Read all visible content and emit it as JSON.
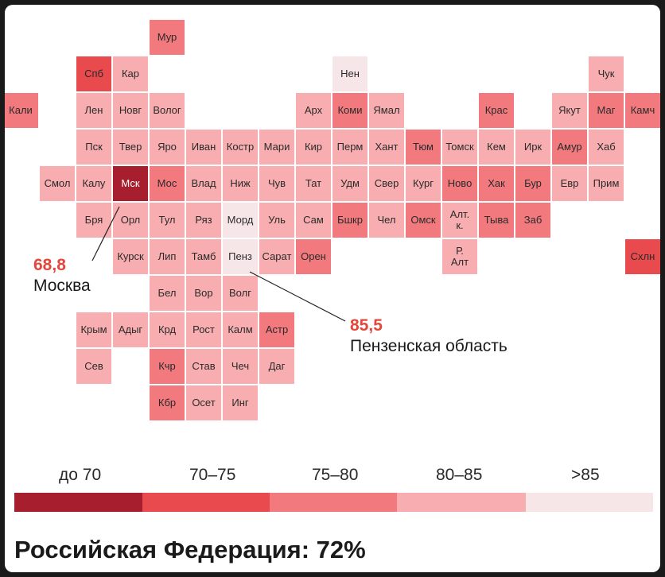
{
  "chart_data": {
    "type": "heatmap",
    "bins": [
      {
        "label": "до 70",
        "color": "#a71f2e"
      },
      {
        "label": "70–75",
        "color": "#e84a4e"
      },
      {
        "label": "75–80",
        "color": "#f27a7e"
      },
      {
        "label": "80–85",
        "color": "#f8aeb0"
      },
      {
        "label": ">85",
        "color": "#f6e6e8"
      }
    ],
    "regions": [
      {
        "name": "Мур",
        "col": 4,
        "row": 0,
        "bin": 2
      },
      {
        "name": "Спб",
        "col": 2,
        "row": 1,
        "bin": 1
      },
      {
        "name": "Кар",
        "col": 3,
        "row": 1,
        "bin": 3
      },
      {
        "name": "Нен",
        "col": 9,
        "row": 1,
        "bin": 4
      },
      {
        "name": "Чук",
        "col": 16,
        "row": 1,
        "bin": 3
      },
      {
        "name": "Кали",
        "col": 0,
        "row": 2,
        "bin": 2
      },
      {
        "name": "Лен",
        "col": 2,
        "row": 2,
        "bin": 3
      },
      {
        "name": "Новг",
        "col": 3,
        "row": 2,
        "bin": 3
      },
      {
        "name": "Волог",
        "col": 4,
        "row": 2,
        "bin": 3
      },
      {
        "name": "Арх",
        "col": 8,
        "row": 2,
        "bin": 3
      },
      {
        "name": "Коми",
        "col": 9,
        "row": 2,
        "bin": 2
      },
      {
        "name": "Ямал",
        "col": 10,
        "row": 2,
        "bin": 3
      },
      {
        "name": "Крас",
        "col": 13,
        "row": 2,
        "bin": 2
      },
      {
        "name": "Якут",
        "col": 15,
        "row": 2,
        "bin": 3
      },
      {
        "name": "Маг",
        "col": 16,
        "row": 2,
        "bin": 2
      },
      {
        "name": "Камч",
        "col": 17,
        "row": 2,
        "bin": 2
      },
      {
        "name": "Пск",
        "col": 2,
        "row": 3,
        "bin": 3
      },
      {
        "name": "Твер",
        "col": 3,
        "row": 3,
        "bin": 3
      },
      {
        "name": "Яро",
        "col": 4,
        "row": 3,
        "bin": 3
      },
      {
        "name": "Иван",
        "col": 5,
        "row": 3,
        "bin": 3
      },
      {
        "name": "Костр",
        "col": 6,
        "row": 3,
        "bin": 3
      },
      {
        "name": "Мари",
        "col": 7,
        "row": 3,
        "bin": 3
      },
      {
        "name": "Кир",
        "col": 8,
        "row": 3,
        "bin": 3
      },
      {
        "name": "Перм",
        "col": 9,
        "row": 3,
        "bin": 3
      },
      {
        "name": "Хант",
        "col": 10,
        "row": 3,
        "bin": 3
      },
      {
        "name": "Тюм",
        "col": 11,
        "row": 3,
        "bin": 2
      },
      {
        "name": "Томск",
        "col": 12,
        "row": 3,
        "bin": 3
      },
      {
        "name": "Кем",
        "col": 13,
        "row": 3,
        "bin": 3
      },
      {
        "name": "Ирк",
        "col": 14,
        "row": 3,
        "bin": 3
      },
      {
        "name": "Амур",
        "col": 15,
        "row": 3,
        "bin": 2
      },
      {
        "name": "Хаб",
        "col": 16,
        "row": 3,
        "bin": 3
      },
      {
        "name": "Смол",
        "col": 1,
        "row": 4,
        "bin": 3
      },
      {
        "name": "Калу",
        "col": 2,
        "row": 4,
        "bin": 3
      },
      {
        "name": "Мск",
        "col": 3,
        "row": 4,
        "bin": 0
      },
      {
        "name": "Мос",
        "col": 4,
        "row": 4,
        "bin": 2
      },
      {
        "name": "Влад",
        "col": 5,
        "row": 4,
        "bin": 3
      },
      {
        "name": "Ниж",
        "col": 6,
        "row": 4,
        "bin": 3
      },
      {
        "name": "Чув",
        "col": 7,
        "row": 4,
        "bin": 3
      },
      {
        "name": "Тат",
        "col": 8,
        "row": 4,
        "bin": 3
      },
      {
        "name": "Удм",
        "col": 9,
        "row": 4,
        "bin": 3
      },
      {
        "name": "Свер",
        "col": 10,
        "row": 4,
        "bin": 3
      },
      {
        "name": "Кург",
        "col": 11,
        "row": 4,
        "bin": 3
      },
      {
        "name": "Ново",
        "col": 12,
        "row": 4,
        "bin": 2
      },
      {
        "name": "Хак",
        "col": 13,
        "row": 4,
        "bin": 2
      },
      {
        "name": "Бур",
        "col": 14,
        "row": 4,
        "bin": 2
      },
      {
        "name": "Евр",
        "col": 15,
        "row": 4,
        "bin": 3
      },
      {
        "name": "Прим",
        "col": 16,
        "row": 4,
        "bin": 3
      },
      {
        "name": "Бря",
        "col": 2,
        "row": 5,
        "bin": 3
      },
      {
        "name": "Орл",
        "col": 3,
        "row": 5,
        "bin": 3
      },
      {
        "name": "Тул",
        "col": 4,
        "row": 5,
        "bin": 3
      },
      {
        "name": "Ряз",
        "col": 5,
        "row": 5,
        "bin": 3
      },
      {
        "name": "Морд",
        "col": 6,
        "row": 5,
        "bin": 4
      },
      {
        "name": "Уль",
        "col": 7,
        "row": 5,
        "bin": 3
      },
      {
        "name": "Сам",
        "col": 8,
        "row": 5,
        "bin": 3
      },
      {
        "name": "Бшкр",
        "col": 9,
        "row": 5,
        "bin": 2
      },
      {
        "name": "Чел",
        "col": 10,
        "row": 5,
        "bin": 3
      },
      {
        "name": "Омск",
        "col": 11,
        "row": 5,
        "bin": 2
      },
      {
        "name": "Алт.\nк.",
        "col": 12,
        "row": 5,
        "bin": 3
      },
      {
        "name": "Тыва",
        "col": 13,
        "row": 5,
        "bin": 2
      },
      {
        "name": "Заб",
        "col": 14,
        "row": 5,
        "bin": 2
      },
      {
        "name": "Курск",
        "col": 3,
        "row": 6,
        "bin": 3
      },
      {
        "name": "Лип",
        "col": 4,
        "row": 6,
        "bin": 3
      },
      {
        "name": "Тамб",
        "col": 5,
        "row": 6,
        "bin": 3
      },
      {
        "name": "Пенз",
        "col": 6,
        "row": 6,
        "bin": 4
      },
      {
        "name": "Сарат",
        "col": 7,
        "row": 6,
        "bin": 3
      },
      {
        "name": "Орен",
        "col": 8,
        "row": 6,
        "bin": 2
      },
      {
        "name": "Р.\nАлт",
        "col": 12,
        "row": 6,
        "bin": 3
      },
      {
        "name": "Схлн",
        "col": 17,
        "row": 6,
        "bin": 1
      },
      {
        "name": "Бел",
        "col": 4,
        "row": 7,
        "bin": 3
      },
      {
        "name": "Вор",
        "col": 5,
        "row": 7,
        "bin": 3
      },
      {
        "name": "Волг",
        "col": 6,
        "row": 7,
        "bin": 3
      },
      {
        "name": "Крым",
        "col": 2,
        "row": 8,
        "bin": 3
      },
      {
        "name": "Адыг",
        "col": 3,
        "row": 8,
        "bin": 3
      },
      {
        "name": "Крд",
        "col": 4,
        "row": 8,
        "bin": 3
      },
      {
        "name": "Рост",
        "col": 5,
        "row": 8,
        "bin": 3
      },
      {
        "name": "Калм",
        "col": 6,
        "row": 8,
        "bin": 3
      },
      {
        "name": "Астр",
        "col": 7,
        "row": 8,
        "bin": 2
      },
      {
        "name": "Сев",
        "col": 2,
        "row": 9,
        "bin": 3
      },
      {
        "name": "Кчр",
        "col": 4,
        "row": 9,
        "bin": 2
      },
      {
        "name": "Став",
        "col": 5,
        "row": 9,
        "bin": 3
      },
      {
        "name": "Чеч",
        "col": 6,
        "row": 9,
        "bin": 3
      },
      {
        "name": "Даг",
        "col": 7,
        "row": 9,
        "bin": 3
      },
      {
        "name": "Кбр",
        "col": 4,
        "row": 10,
        "bin": 2
      },
      {
        "name": "Осет",
        "col": 5,
        "row": 10,
        "bin": 3
      },
      {
        "name": "Инг",
        "col": 6,
        "row": 10,
        "bin": 3
      }
    ],
    "annotations": [
      {
        "value": "68,8",
        "label": "Москва",
        "region": "Мск"
      },
      {
        "value": "85,5",
        "label": "Пензенская область",
        "region": "Пенз"
      }
    ]
  },
  "footer": {
    "text": "Российская Федерация: 72%"
  }
}
